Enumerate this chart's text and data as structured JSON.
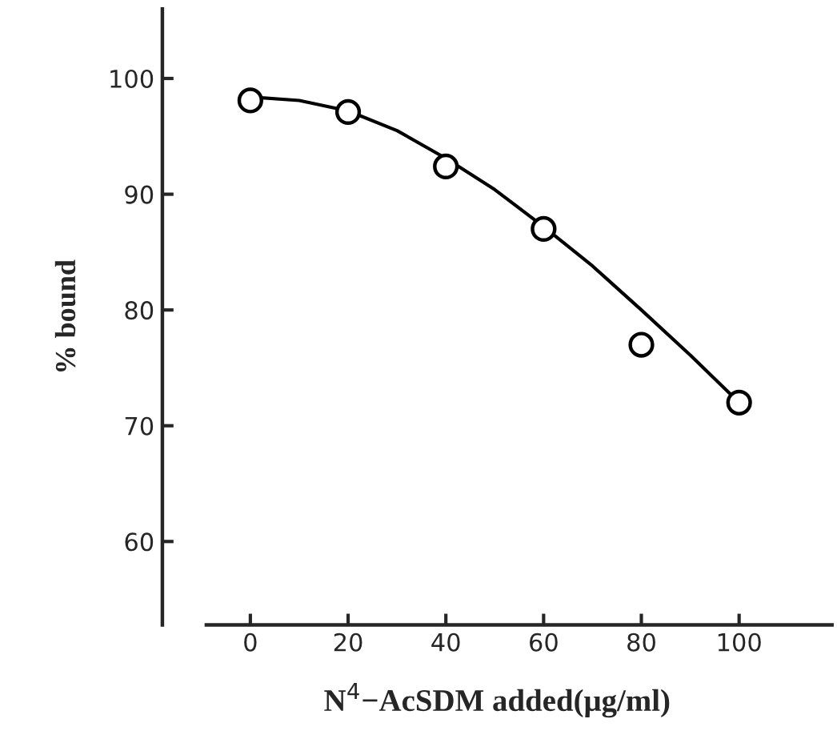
{
  "chart_data": {
    "type": "scatter",
    "xlabel": "N$^{4}$−AcSDM added(μg/ml)",
    "ylabel": "% bound",
    "xlim": [
      -18,
      119
    ],
    "ylim": [
      52.8,
      106
    ],
    "xticks": [
      0,
      20,
      40,
      60,
      80,
      100
    ],
    "yticks": [
      60,
      70,
      80,
      90,
      100
    ],
    "grid": false,
    "legend": false,
    "series": [
      {
        "marker": "circle",
        "color": "#000000",
        "x": [
          0,
          20,
          40,
          60,
          80,
          100
        ],
        "values": [
          98.1,
          97.1,
          92.4,
          87.0,
          77.0,
          72.0
        ]
      },
      {
        "type": "line",
        "color": "#000000",
        "line_style": "solid",
        "x": [
          0,
          10,
          20,
          30,
          40,
          50,
          60,
          70,
          80,
          90,
          100
        ],
        "values": [
          98.4,
          98.1,
          97.2,
          95.5,
          93.1,
          90.4,
          87.2,
          83.8,
          80.0,
          76.1,
          72.0
        ]
      }
    ]
  }
}
